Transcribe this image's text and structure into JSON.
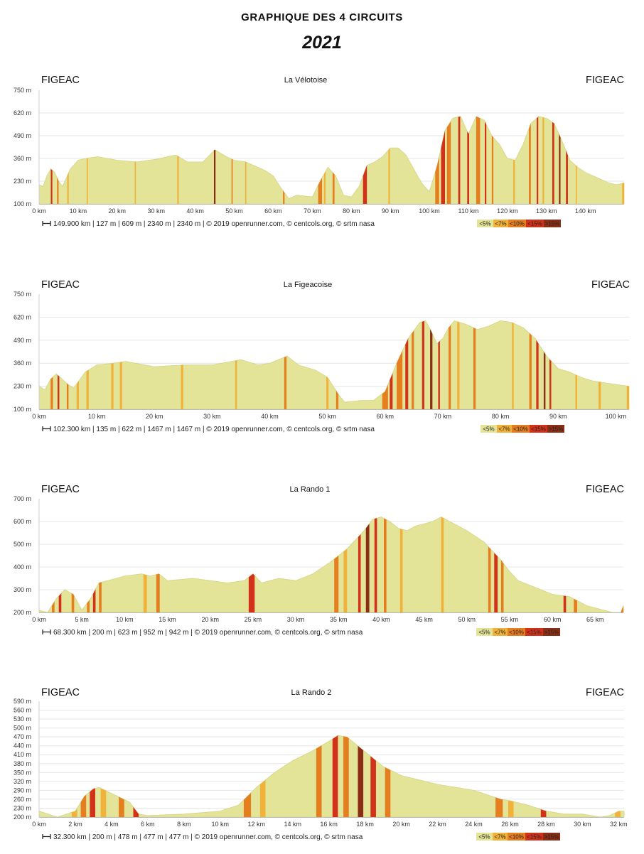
{
  "title": "GRAPHIQUE DES 4 CIRCUITS",
  "year": "2021",
  "colors": {
    "base": "#e3e497",
    "grade_lt5": "#e3e497",
    "grade_lt7": "#f0b23a",
    "grade_lt10": "#e57e1f",
    "grade_lt15": "#d2321a",
    "grade_gt15": "#8b2e16",
    "axis": "#cfcfcf",
    "grid": "#e6e6e6"
  },
  "legend": [
    "<5%",
    "<7%",
    "<10%",
    "<15%",
    ">15%"
  ],
  "chart_data": [
    {
      "type": "area",
      "title": "La Vélotoise",
      "start_label": "FIGEAC",
      "end_label": "FIGEAC",
      "xlabel": "",
      "ylabel": "",
      "x_unit": "km",
      "y_unit": "m",
      "xlim": [
        0,
        149.9
      ],
      "ylim": [
        100,
        750
      ],
      "yticks": [
        "750 m",
        "620 m",
        "490 m",
        "360 m",
        "230 m",
        "100 m"
      ],
      "ytick_values": [
        750,
        620,
        490,
        360,
        230,
        100
      ],
      "xticks": [
        "0 km",
        "10 km",
        "20 km",
        "30 km",
        "40 km",
        "50 km",
        "60 km",
        "70 km",
        "80 km",
        "90 km",
        "100 km",
        "110 km",
        "120 km",
        "130 km",
        "140 km"
      ],
      "xtick_values": [
        0,
        10,
        20,
        30,
        40,
        50,
        60,
        70,
        80,
        90,
        100,
        110,
        120,
        130,
        140
      ],
      "stats": "149.900 km | 127 m | 609 m | 2340 m | 2340 m | © 2019 openrunner.com, © centcols.org, © srtm nasa",
      "x": [
        0,
        1,
        2,
        3,
        4,
        5,
        6,
        8,
        10,
        12,
        15,
        20,
        25,
        30,
        35,
        38,
        42,
        45,
        48,
        50,
        53,
        57,
        58,
        60,
        62,
        64,
        66,
        70,
        72,
        74,
        76,
        78,
        80,
        82,
        84,
        86,
        88,
        90,
        92,
        94,
        96,
        98,
        100,
        102,
        104,
        106,
        108,
        110,
        112,
        114,
        116,
        118,
        120,
        122,
        124,
        126,
        128,
        130,
        132,
        134,
        136,
        138,
        140,
        142,
        144,
        146,
        148,
        149.9
      ],
      "y": [
        210,
        200,
        260,
        300,
        280,
        230,
        200,
        300,
        350,
        360,
        370,
        350,
        340,
        355,
        380,
        340,
        340,
        410,
        370,
        350,
        340,
        300,
        290,
        260,
        190,
        130,
        150,
        140,
        230,
        310,
        260,
        150,
        140,
        200,
        320,
        340,
        370,
        420,
        420,
        380,
        300,
        220,
        170,
        320,
        520,
        590,
        600,
        500,
        600,
        580,
        490,
        440,
        360,
        350,
        440,
        560,
        600,
        590,
        560,
        460,
        350,
        310,
        280,
        260,
        240,
        220,
        210,
        220
      ],
      "bands": [
        [
          3,
          3.4,
          3
        ],
        [
          4.6,
          5,
          2
        ],
        [
          7.2,
          7.6,
          1
        ],
        [
          12.2,
          12.5,
          1
        ],
        [
          24.5,
          24.8,
          1
        ],
        [
          35.4,
          35.8,
          1
        ],
        [
          44.8,
          45.2,
          4
        ],
        [
          49.3,
          49.6,
          2
        ],
        [
          52.8,
          53.1,
          1
        ],
        [
          62.5,
          62.9,
          2
        ],
        [
          71.5,
          72.5,
          2
        ],
        [
          73,
          73.4,
          1
        ],
        [
          75.2,
          75.7,
          2
        ],
        [
          83,
          84,
          3
        ],
        [
          89.5,
          89.9,
          1
        ],
        [
          101.5,
          102.5,
          2
        ],
        [
          103,
          104,
          3
        ],
        [
          104.5,
          105.5,
          2
        ],
        [
          107.4,
          107.9,
          3
        ],
        [
          109.7,
          110.2,
          3
        ],
        [
          112,
          113,
          2
        ],
        [
          114.2,
          114.6,
          3
        ],
        [
          116,
          116.4,
          2
        ],
        [
          121.5,
          121.9,
          1
        ],
        [
          125.5,
          126,
          2
        ],
        [
          127.5,
          127.9,
          3
        ],
        [
          129,
          129.4,
          1
        ],
        [
          131.5,
          132,
          3
        ],
        [
          133.2,
          133.6,
          4
        ],
        [
          135,
          135.5,
          3
        ],
        [
          137.5,
          137.8,
          1
        ],
        [
          149.4,
          149.9,
          1
        ]
      ]
    },
    {
      "type": "area",
      "title": "La Figeacoise",
      "start_label": "FIGEAC",
      "end_label": "FIGEAC",
      "xlabel": "",
      "ylabel": "",
      "x_unit": "km",
      "y_unit": "m",
      "xlim": [
        0,
        102.3
      ],
      "ylim": [
        100,
        750
      ],
      "yticks": [
        "750 m",
        "620 m",
        "490 m",
        "360 m",
        "230 m",
        "100 m"
      ],
      "ytick_values": [
        750,
        620,
        490,
        360,
        230,
        100
      ],
      "xticks": [
        "0 km",
        "10 km",
        "20 km",
        "30 km",
        "40 km",
        "50 km",
        "60 km",
        "70 km",
        "80 km",
        "90 km",
        "100 km"
      ],
      "xtick_values": [
        0,
        10,
        20,
        30,
        40,
        50,
        60,
        70,
        80,
        90,
        100
      ],
      "stats": "102.300 km | 135 m | 622 m | 1467 m | 1467 m | © 2019 openrunner.com, © centcols.org, © srtm nasa",
      "x": [
        0,
        1,
        2,
        3,
        4,
        5,
        6,
        8,
        10,
        13,
        15,
        20,
        25,
        30,
        35,
        38,
        40,
        43,
        45,
        48,
        50,
        52,
        53,
        56,
        58,
        60,
        62,
        64,
        66,
        67,
        68,
        69,
        70,
        71,
        72,
        74,
        76,
        78,
        80,
        82,
        84,
        86,
        88,
        90,
        92,
        94,
        96,
        98,
        100,
        102.3
      ],
      "y": [
        230,
        210,
        270,
        300,
        270,
        240,
        220,
        310,
        350,
        360,
        370,
        340,
        350,
        350,
        380,
        350,
        360,
        400,
        350,
        320,
        280,
        180,
        140,
        150,
        150,
        200,
        360,
        500,
        590,
        600,
        540,
        470,
        500,
        560,
        600,
        580,
        550,
        570,
        600,
        590,
        560,
        500,
        400,
        330,
        310,
        280,
        260,
        250,
        240,
        230
      ],
      "bands": [
        [
          2,
          2.4,
          2
        ],
        [
          3.2,
          3.5,
          3
        ],
        [
          4.8,
          5.1,
          2
        ],
        [
          6.5,
          6.9,
          1
        ],
        [
          8.2,
          8.6,
          1
        ],
        [
          12.5,
          12.9,
          1
        ],
        [
          14,
          14.4,
          1
        ],
        [
          24.6,
          25,
          1
        ],
        [
          34,
          34.3,
          1
        ],
        [
          42.5,
          42.9,
          2
        ],
        [
          49.8,
          50.2,
          1
        ],
        [
          51.5,
          51.9,
          2
        ],
        [
          59.5,
          60.5,
          2
        ],
        [
          60.8,
          61.3,
          3
        ],
        [
          62,
          63,
          2
        ],
        [
          63.5,
          64,
          3
        ],
        [
          64.6,
          65,
          2
        ],
        [
          66.4,
          66.8,
          3
        ],
        [
          67.8,
          68.2,
          4
        ],
        [
          69.2,
          69.5,
          3
        ],
        [
          71,
          71.4,
          2
        ],
        [
          72.5,
          72.9,
          1
        ],
        [
          75.3,
          75.7,
          2
        ],
        [
          82,
          82.3,
          1
        ],
        [
          85,
          85.4,
          2
        ],
        [
          86.2,
          86.6,
          3
        ],
        [
          87.5,
          87.8,
          4
        ],
        [
          88.5,
          88.8,
          3
        ],
        [
          93,
          93.3,
          1
        ],
        [
          97,
          97.4,
          1
        ],
        [
          101.9,
          102.3,
          1
        ]
      ]
    },
    {
      "type": "area",
      "title": "La Rando 1",
      "start_label": "FIGEAC",
      "end_label": "FIGEAC",
      "xlabel": "",
      "ylabel": "",
      "x_unit": "km",
      "y_unit": "m",
      "xlim": [
        0,
        68.3
      ],
      "ylim": [
        200,
        700
      ],
      "yticks": [
        "700 m",
        "600 m",
        "500 m",
        "400 m",
        "300 m",
        "200 m"
      ],
      "ytick_values": [
        700,
        600,
        500,
        400,
        300,
        200
      ],
      "xticks": [
        "0 km",
        "5 km",
        "10 km",
        "15 km",
        "20 km",
        "25 km",
        "30 km",
        "35 km",
        "40 km",
        "45 km",
        "50 km",
        "55 km",
        "60 km",
        "65 km"
      ],
      "xtick_values": [
        0,
        5,
        10,
        15,
        20,
        25,
        30,
        35,
        40,
        45,
        50,
        55,
        60,
        65
      ],
      "stats": "68.300 km | 200 m | 623 m | 952 m | 942 m | © 2019 openrunner.com, © centcols.org, © srtm nasa",
      "x": [
        0,
        1,
        2,
        3,
        4,
        5,
        6,
        7,
        8,
        10,
        12,
        13,
        14,
        15,
        18,
        20,
        22,
        24,
        25,
        26,
        28,
        30,
        32,
        34,
        36,
        38,
        39,
        40,
        41,
        42,
        43,
        44,
        45,
        46,
        47,
        48,
        50,
        52,
        54,
        55,
        56,
        58,
        60,
        62,
        64,
        66,
        67,
        68,
        68.3
      ],
      "y": [
        210,
        200,
        260,
        300,
        280,
        210,
        260,
        330,
        340,
        360,
        370,
        360,
        370,
        340,
        350,
        340,
        330,
        340,
        370,
        330,
        350,
        340,
        370,
        420,
        480,
        560,
        610,
        620,
        600,
        570,
        560,
        580,
        590,
        600,
        620,
        600,
        560,
        510,
        430,
        380,
        340,
        310,
        280,
        270,
        230,
        210,
        200,
        200,
        230
      ],
      "bands": [
        [
          1.5,
          1.8,
          2
        ],
        [
          2.3,
          2.6,
          3
        ],
        [
          3.8,
          4.1,
          2
        ],
        [
          5.6,
          5.9,
          2
        ],
        [
          6.3,
          6.6,
          3
        ],
        [
          7,
          7.3,
          2
        ],
        [
          12.2,
          12.6,
          1
        ],
        [
          13.7,
          14.1,
          2
        ],
        [
          24.5,
          25.2,
          3
        ],
        [
          34.5,
          35,
          2
        ],
        [
          35.6,
          36,
          1
        ],
        [
          37.3,
          37.6,
          3
        ],
        [
          38.2,
          38.6,
          4
        ],
        [
          39.2,
          39.5,
          3
        ],
        [
          40.3,
          40.6,
          2
        ],
        [
          42.2,
          42.5,
          1
        ],
        [
          47,
          47.3,
          1
        ],
        [
          52.5,
          52.8,
          2
        ],
        [
          53.2,
          53.6,
          3
        ],
        [
          54,
          54.3,
          2
        ],
        [
          61.3,
          61.6,
          3
        ],
        [
          62.5,
          62.9,
          2
        ],
        [
          68,
          68.3,
          2
        ]
      ]
    },
    {
      "type": "area",
      "title": "La Rando 2",
      "start_label": "FIGEAC",
      "end_label": "FIGEAC",
      "xlabel": "",
      "ylabel": "",
      "x_unit": "km",
      "y_unit": "m",
      "xlim": [
        0,
        32.3
      ],
      "ylim": [
        200,
        590
      ],
      "yticks": [
        "590 m",
        "560 m",
        "530 m",
        "500 m",
        "470 m",
        "440 m",
        "410 m",
        "380 m",
        "350 m",
        "320 m",
        "290 m",
        "260 m",
        "230 m",
        "200 m"
      ],
      "ytick_values": [
        590,
        560,
        530,
        500,
        470,
        440,
        410,
        380,
        350,
        320,
        290,
        260,
        230,
        200
      ],
      "xticks": [
        "0 km",
        "2 km",
        "4 km",
        "6 km",
        "8 km",
        "10 km",
        "12 km",
        "14 km",
        "16 km",
        "18 km",
        "20 km",
        "22 km",
        "24 km",
        "26 km",
        "28 km",
        "30 km",
        "32 km"
      ],
      "xtick_values": [
        0,
        2,
        4,
        6,
        8,
        10,
        12,
        14,
        16,
        18,
        20,
        22,
        24,
        26,
        28,
        30,
        32
      ],
      "stats": "32.300 km | 200 m | 478 m | 477 m | 477 m | © 2019 openrunner.com, © centcols.org, © srtm nasa",
      "x": [
        0,
        0.5,
        1,
        2,
        2.5,
        3,
        3.3,
        4,
        5,
        5.5,
        6,
        8,
        10,
        11,
        12,
        13,
        14,
        15,
        16,
        16.5,
        17,
        18,
        19,
        20,
        22,
        24,
        25,
        25.5,
        26,
        27,
        28,
        29,
        30,
        31,
        31.5,
        32,
        32.3
      ],
      "y": [
        220,
        210,
        200,
        220,
        270,
        295,
        300,
        280,
        250,
        210,
        205,
        210,
        220,
        240,
        300,
        350,
        390,
        420,
        455,
        475,
        470,
        420,
        370,
        340,
        310,
        290,
        270,
        260,
        255,
        240,
        220,
        210,
        210,
        200,
        205,
        220,
        220
      ],
      "bands": [
        [
          1.8,
          2.1,
          1
        ],
        [
          2.3,
          2.6,
          2
        ],
        [
          2.8,
          3.1,
          3
        ],
        [
          3.4,
          3.7,
          1
        ],
        [
          4.4,
          4.7,
          2
        ],
        [
          5.2,
          5.5,
          3
        ],
        [
          11.3,
          11.7,
          2
        ],
        [
          12.2,
          12.5,
          1
        ],
        [
          15.3,
          15.6,
          2
        ],
        [
          16.2,
          16.5,
          3
        ],
        [
          16.8,
          17.1,
          2
        ],
        [
          17.6,
          17.9,
          4
        ],
        [
          18.3,
          18.6,
          3
        ],
        [
          19.1,
          19.4,
          2
        ],
        [
          25.2,
          25.6,
          2
        ],
        [
          25.9,
          26.2,
          1
        ],
        [
          27.7,
          28,
          3
        ],
        [
          31.8,
          32.1,
          1
        ]
      ]
    }
  ]
}
